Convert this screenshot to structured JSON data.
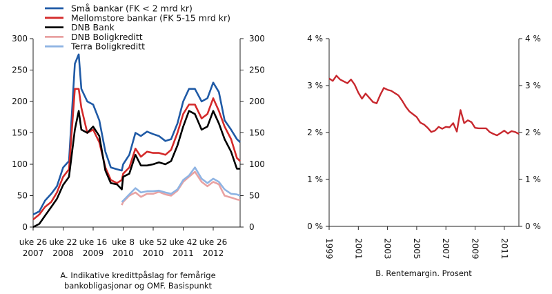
{
  "chart_data": [
    {
      "type": "line",
      "caption": [
        "A. Indikative kredittpåslag for femårige",
        "bankobligasjonar og OMF. Basispunkt"
      ],
      "x_ticks": [
        {
          "week": "uke 26",
          "year": "2007",
          "date": "2007-W26"
        },
        {
          "week": "uke 22",
          "year": "2008",
          "date": "2008-W22"
        },
        {
          "week": "uke 16",
          "year": "2009",
          "date": "2009-W16"
        },
        {
          "week": "uke 8",
          "year": "2010",
          "date": "2010-W08"
        },
        {
          "week": "uke 52",
          "year": "2010",
          "date": "2010-W52"
        },
        {
          "week": "uke 42",
          "year": "2011",
          "date": "2011-W42"
        },
        {
          "week": "uke 26",
          "year": "2012",
          "date": "2012-W26"
        }
      ],
      "x_end": "2013-W07",
      "ylim": [
        0,
        300
      ],
      "y_ticks": [
        "0",
        "50",
        "100",
        "150",
        "200",
        "250",
        "300"
      ],
      "y_tick_values": [
        0,
        50,
        100,
        150,
        200,
        250,
        300
      ],
      "grid": false,
      "legend_position": "top-left",
      "x": [
        "2007-W26",
        "2007-W36",
        "2007-W45",
        "2008-W03",
        "2008-W12",
        "2008-W22",
        "2008-W31",
        "2008-W40",
        "2008-W46",
        "2008-W50",
        "2009-W07",
        "2009-W16",
        "2009-W25",
        "2009-W34",
        "2009-W42",
        "2009-W51",
        "2010-W06",
        "2010-W08",
        "2010-W17",
        "2010-W26",
        "2010-W34",
        "2010-W43",
        "2010-W52",
        "2011-W08",
        "2011-W17",
        "2011-W25",
        "2011-W34",
        "2011-W42",
        "2011-W49",
        "2012-W04",
        "2012-W12",
        "2012-W19",
        "2012-W26",
        "2012-W33",
        "2012-W40",
        "2012-W48",
        "2013-W03",
        "2013-W07"
      ],
      "series": [
        {
          "name": "Små bankar (FK < 2 mrd kr)",
          "color": "#1f5aa6",
          "values": [
            20,
            25,
            42,
            53,
            65,
            95,
            105,
            260,
            275,
            220,
            200,
            195,
            170,
            120,
            95,
            92,
            90,
            100,
            115,
            150,
            145,
            152,
            148,
            145,
            137,
            140,
            165,
            200,
            220,
            220,
            200,
            205,
            230,
            215,
            170,
            155,
            140,
            135
          ]
        },
        {
          "name": "Mellomstore bankar (FK 5-15 mrd kr)",
          "color": "#d42a2a",
          "values": [
            12,
            20,
            32,
            40,
            55,
            80,
            92,
            220,
            220,
            190,
            150,
            155,
            135,
            95,
            75,
            70,
            75,
            85,
            95,
            125,
            112,
            120,
            118,
            118,
            115,
            123,
            150,
            180,
            195,
            195,
            173,
            180,
            205,
            185,
            160,
            140,
            110,
            105
          ]
        },
        {
          "name": "DNB Bank",
          "color": "#000000",
          "values": [
            0,
            5,
            18,
            32,
            45,
            67,
            80,
            155,
            185,
            155,
            150,
            160,
            145,
            90,
            70,
            68,
            60,
            80,
            85,
            115,
            98,
            98,
            100,
            103,
            100,
            105,
            130,
            160,
            185,
            180,
            155,
            160,
            185,
            165,
            140,
            120,
            93,
            93
          ]
        },
        {
          "name": "DNB Boligkreditt",
          "color": "#e9a2a2",
          "values": [
            null,
            null,
            null,
            null,
            null,
            null,
            null,
            null,
            null,
            null,
            null,
            null,
            null,
            null,
            null,
            null,
            35,
            40,
            50,
            55,
            48,
            53,
            53,
            56,
            52,
            50,
            58,
            72,
            80,
            88,
            72,
            65,
            72,
            68,
            50,
            47,
            44,
            43
          ]
        },
        {
          "name": "Terra Boligkreditt",
          "color": "#8fb4e3",
          "values": [
            null,
            null,
            null,
            null,
            null,
            null,
            null,
            null,
            null,
            null,
            null,
            null,
            null,
            null,
            null,
            null,
            40,
            42,
            52,
            62,
            55,
            57,
            57,
            58,
            55,
            53,
            60,
            75,
            82,
            95,
            77,
            70,
            77,
            72,
            60,
            53,
            52,
            50
          ]
        }
      ]
    },
    {
      "type": "line",
      "caption": "B. Rentemargin. Prosent",
      "xlim": [
        1999,
        2012
      ],
      "x_ticks": [
        "1999",
        "2001",
        "2003",
        "2005",
        "2007",
        "2009",
        "2011"
      ],
      "x_tick_values": [
        1999,
        2001,
        2003,
        2005,
        2007,
        2009,
        2011
      ],
      "ylim": [
        0,
        4
      ],
      "y_ticks": [
        "0 %",
        "1 %",
        "2 %",
        "3 %",
        "4 %"
      ],
      "y_tick_values": [
        0,
        1,
        2,
        3,
        4
      ],
      "grid": false,
      "series": [
        {
          "color": "#c8282e",
          "x": [
            1999,
            1999.25,
            1999.5,
            1999.75,
            2000,
            2000.25,
            2000.5,
            2000.75,
            2001,
            2001.25,
            2001.5,
            2001.75,
            2002,
            2002.25,
            2002.5,
            2002.75,
            2003,
            2003.25,
            2003.5,
            2003.75,
            2004,
            2004.25,
            2004.5,
            2004.75,
            2005,
            2005.25,
            2005.5,
            2005.75,
            2006,
            2006.25,
            2006.5,
            2006.75,
            2007,
            2007.25,
            2007.5,
            2007.75,
            2008,
            2008.25,
            2008.5,
            2008.75,
            2009,
            2009.25,
            2009.5,
            2009.75,
            2010,
            2010.25,
            2010.5,
            2010.75,
            2011,
            2011.25,
            2011.5,
            2011.75,
            2012
          ],
          "values": [
            3.15,
            3.1,
            3.21,
            3.13,
            3.09,
            3.05,
            3.13,
            3.02,
            2.85,
            2.72,
            2.83,
            2.74,
            2.65,
            2.62,
            2.8,
            2.95,
            2.91,
            2.89,
            2.84,
            2.79,
            2.68,
            2.55,
            2.45,
            2.39,
            2.33,
            2.21,
            2.17,
            2.1,
            2.01,
            2.04,
            2.12,
            2.08,
            2.12,
            2.11,
            2.2,
            2.02,
            2.48,
            2.2,
            2.26,
            2.22,
            2.1,
            2.09,
            2.09,
            2.09,
            2.01,
            1.97,
            1.94,
            1.99,
            2.04,
            1.98,
            2.03,
            2.01,
            1.97
          ]
        }
      ]
    }
  ]
}
